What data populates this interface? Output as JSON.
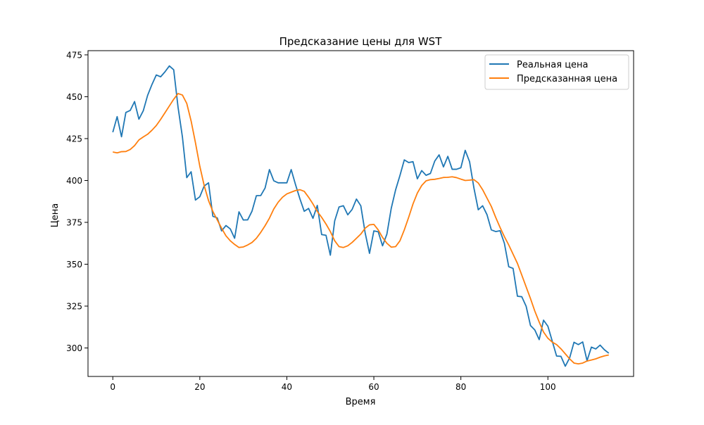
{
  "chart_data": {
    "type": "line",
    "title": "Предсказание цены для WST",
    "xlabel": "Время",
    "ylabel": "Цена",
    "xlim": [
      -5.7,
      119.7
    ],
    "ylim": [
      283,
      477.5
    ],
    "xticks": [
      0,
      20,
      40,
      60,
      80,
      100
    ],
    "yticks": [
      300,
      325,
      350,
      375,
      400,
      425,
      450,
      475
    ],
    "grid": false,
    "legend_position": "top-right",
    "series": [
      {
        "name": "Реальная цена",
        "color": "#1f77b4",
        "x_start": 0,
        "x_step": 1,
        "values": [
          428.8,
          438.1,
          426.1,
          440.6,
          441.8,
          447.1,
          436.6,
          441.6,
          450.8,
          457.3,
          463.0,
          461.9,
          464.9,
          468.4,
          466.1,
          443.7,
          426.0,
          401.7,
          405.2,
          388.3,
          390.3,
          396.7,
          398.6,
          378.6,
          377.7,
          369.9,
          373.1,
          371.1,
          365.5,
          381.3,
          376.4,
          376.5,
          381.7,
          390.9,
          391.0,
          395.5,
          406.5,
          399.8,
          398.6,
          398.6,
          398.6,
          406.5,
          397.5,
          389.1,
          381.6,
          383.3,
          377.4,
          385.1,
          367.7,
          367.3,
          355.4,
          375.9,
          384.2,
          384.9,
          379.5,
          382.7,
          388.9,
          384.9,
          368.7,
          356.5,
          369.9,
          369.4,
          361.0,
          368.0,
          383.4,
          394.4,
          403.0,
          412.3,
          410.7,
          411.2,
          401.0,
          405.9,
          403.1,
          404.2,
          411.6,
          415.3,
          408.1,
          414.4,
          406.7,
          406.7,
          407.6,
          418.0,
          411.2,
          395.5,
          382.5,
          384.9,
          379.6,
          370.5,
          369.5,
          370.0,
          362.5,
          348.5,
          347.5,
          330.9,
          330.6,
          324.9,
          313.4,
          310.7,
          305.0,
          316.6,
          313.0,
          304.1,
          295.2,
          295.0,
          289.1,
          294.1,
          303.4,
          302.0,
          303.6,
          292.4,
          300.5,
          299.4,
          301.7,
          298.9,
          296.9
        ]
      },
      {
        "name": "Предсказанная цена",
        "color": "#ff7f0e",
        "x_start": 0,
        "x_step": 1,
        "values": [
          417.0,
          416.5,
          417.2,
          417.3,
          418.5,
          420.8,
          424.2,
          426.0,
          427.6,
          430.0,
          432.8,
          436.5,
          440.5,
          444.5,
          448.5,
          451.9,
          451.0,
          446.0,
          435.5,
          422.5,
          408.5,
          397.0,
          388.0,
          381.5,
          376.5,
          371.5,
          367.0,
          364.0,
          361.8,
          360.0,
          360.3,
          361.5,
          363.0,
          365.5,
          369.0,
          373.0,
          377.5,
          383.0,
          387.0,
          390.0,
          392.0,
          393.0,
          394.0,
          394.5,
          393.5,
          390.0,
          386.0,
          381.5,
          378.0,
          374.0,
          369.5,
          364.0,
          360.5,
          360.0,
          361.0,
          363.0,
          365.5,
          368.0,
          371.5,
          373.5,
          373.8,
          370.5,
          366.0,
          362.5,
          360.2,
          360.5,
          364.0,
          370.5,
          378.0,
          386.0,
          392.5,
          397.0,
          399.8,
          400.5,
          400.7,
          401.2,
          401.8,
          401.9,
          402.2,
          401.7,
          400.8,
          400.0,
          400.2,
          400.5,
          398.5,
          394.5,
          389.5,
          384.5,
          378.0,
          372.0,
          366.5,
          361.5,
          356.0,
          350.5,
          343.5,
          336.5,
          329.5,
          322.0,
          315.5,
          309.5,
          305.8,
          303.5,
          302.0,
          299.5,
          296.5,
          293.5,
          291.0,
          290.5,
          291.0,
          292.2,
          292.8,
          293.5,
          294.5,
          295.3,
          295.8
        ]
      }
    ]
  }
}
